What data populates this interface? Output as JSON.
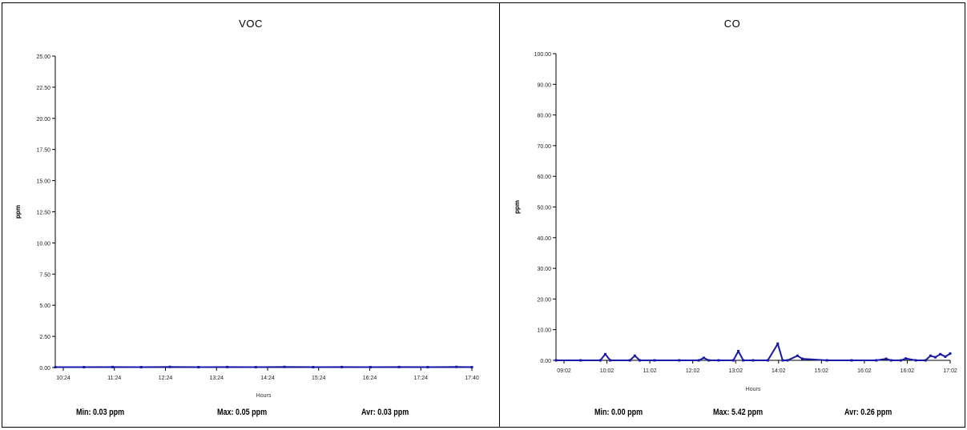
{
  "chart_data": [
    {
      "type": "line",
      "title": "VOC",
      "ylabel": "ppm",
      "xlabel": "Hours",
      "ylim": [
        0,
        25
      ],
      "y_ticks": [
        "0.00",
        "2.50",
        "5.00",
        "7.50",
        "10.00",
        "12.50",
        "15.00",
        "17.50",
        "20.00",
        "22.50",
        "25.00"
      ],
      "x_ticks": [
        "10:24",
        "11:24",
        "12:24",
        "13:24",
        "14:24",
        "15:24",
        "16:24",
        "17:24",
        "17:40"
      ],
      "x_range": [
        0,
        7.27
      ],
      "series": [
        {
          "color": "#1a1aa8",
          "x": [
            0,
            0.5,
            1,
            1.5,
            2,
            2.5,
            3,
            3.5,
            4,
            4.5,
            5,
            5.5,
            6,
            6.5,
            7,
            7.27
          ],
          "y": [
            0.03,
            0.03,
            0.04,
            0.03,
            0.05,
            0.03,
            0.04,
            0.03,
            0.05,
            0.03,
            0.04,
            0.03,
            0.04,
            0.03,
            0.05,
            0.03
          ]
        }
      ],
      "stats": {
        "min": "Min: 0.03 ppm",
        "max": "Max: 0.05 ppm",
        "avg": "Avr: 0.03 ppm"
      }
    },
    {
      "type": "line",
      "title": "CO",
      "ylabel": "ppm",
      "xlabel": "Hours",
      "ylim": [
        0,
        100
      ],
      "y_ticks": [
        "0.00",
        "10.00",
        "20.00",
        "30.00",
        "40.00",
        "50.00",
        "60.00",
        "70.00",
        "80.00",
        "90.00",
        "100.00"
      ],
      "x_ticks": [
        "09:02",
        "10:02",
        "11:02",
        "12:02",
        "13:02",
        "14:02",
        "15:02",
        "16:02",
        "16:02",
        "17:02"
      ],
      "x_range": [
        0,
        8
      ],
      "series": [
        {
          "color": "#1a1aa8",
          "x": [
            0,
            0.5,
            0.9,
            1.0,
            1.1,
            1.5,
            1.6,
            1.7,
            2.0,
            2.5,
            2.9,
            3.0,
            3.1,
            3.3,
            3.6,
            3.7,
            3.8,
            4.0,
            4.3,
            4.5,
            4.6,
            4.7,
            4.9,
            5.0,
            5.5,
            6.0,
            6.5,
            6.7,
            6.8,
            7.0,
            7.1,
            7.3,
            7.5,
            7.6,
            7.7,
            7.8,
            7.9,
            8.0
          ],
          "y": [
            0,
            0,
            0,
            2,
            0,
            0,
            1.5,
            0,
            0,
            0,
            0,
            0.8,
            0,
            0,
            0,
            3,
            0,
            0,
            0,
            5.4,
            0,
            0,
            1.5,
            0.5,
            0,
            0,
            0,
            0.5,
            0,
            0,
            0.6,
            0,
            0,
            1.5,
            1.0,
            2.0,
            1.2,
            2.2
          ]
        }
      ],
      "stats": {
        "min": "Min: 0.00 ppm",
        "max": "Max: 5.42 ppm",
        "avg": "Avr: 0.26 ppm"
      }
    }
  ]
}
